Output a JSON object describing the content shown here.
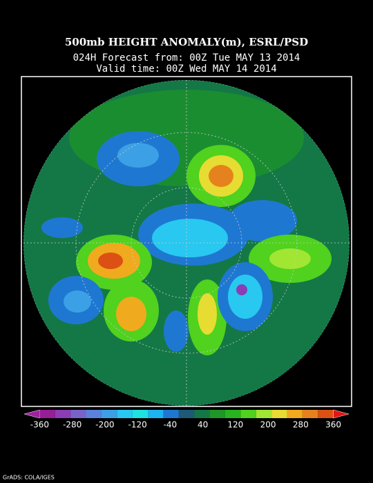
{
  "header": {
    "title": "500mb HEIGHT ANOMALY(m), ESRL/PSD",
    "subtitle": "024H Forecast from: 00Z Tue MAY 13 2014",
    "valid": "Valid time: 00Z Wed MAY 14 2014"
  },
  "colorbar": {
    "labels": [
      -360,
      -280,
      -200,
      -120,
      -40,
      40,
      120,
      200,
      280,
      360
    ],
    "colors": [
      "#a020a0",
      "#961e96",
      "#8c3cb4",
      "#7864c8",
      "#5a82dc",
      "#3ca0e6",
      "#28c8f0",
      "#1ee1e1",
      "#1eb4f0",
      "#1e78d2",
      "#1e5a78",
      "#147846",
      "#1e9628",
      "#28b41e",
      "#50d21e",
      "#a0e632",
      "#e6dc32",
      "#f0aa1e",
      "#e6821e",
      "#dc5014",
      "#e61414"
    ]
  },
  "footer": {
    "credit": "GrADS: COLA/IGES"
  }
}
